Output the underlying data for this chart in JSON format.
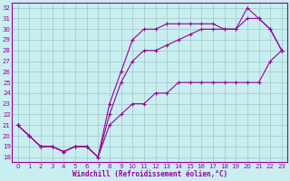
{
  "xlabel": "Windchill (Refroidissement éolien,°C)",
  "ylabel": "",
  "xlim": [
    -0.5,
    23.5
  ],
  "ylim": [
    17.5,
    32.5
  ],
  "xticks": [
    0,
    1,
    2,
    3,
    4,
    5,
    6,
    7,
    8,
    9,
    10,
    11,
    12,
    13,
    14,
    15,
    16,
    17,
    18,
    19,
    20,
    21,
    22,
    23
  ],
  "yticks": [
    18,
    19,
    20,
    21,
    22,
    23,
    24,
    25,
    26,
    27,
    28,
    29,
    30,
    31,
    32
  ],
  "background_color": "#c8eef0",
  "line_color": "#990099",
  "grid_color": "#aacccc",
  "line1_x": [
    0,
    1,
    2,
    3,
    4,
    5,
    6,
    7,
    8,
    9,
    10,
    11,
    12,
    13,
    14,
    15,
    16,
    17,
    18,
    19,
    20,
    21,
    22,
    23
  ],
  "line1_y": [
    21,
    20,
    19,
    19,
    18.5,
    19,
    19,
    18,
    21,
    22,
    23,
    23,
    24,
    24,
    25,
    25,
    25,
    25,
    25,
    25,
    25,
    25,
    27,
    28
  ],
  "line2_x": [
    0,
    1,
    2,
    3,
    4,
    5,
    6,
    7,
    8,
    9,
    10,
    11,
    12,
    13,
    14,
    15,
    16,
    17,
    18,
    19,
    20,
    21,
    22,
    23
  ],
  "line2_y": [
    21,
    20,
    19,
    19,
    18.5,
    19,
    19,
    18,
    22,
    25,
    27,
    28,
    28,
    28.5,
    29,
    29.5,
    30,
    30,
    30,
    30,
    31,
    31,
    30,
    28
  ],
  "line3_x": [
    0,
    1,
    2,
    3,
    4,
    5,
    6,
    7,
    8,
    9,
    10,
    11,
    12,
    13,
    14,
    15,
    16,
    17,
    18,
    19,
    20,
    21,
    22,
    23
  ],
  "line3_y": [
    21,
    20,
    19,
    19,
    18.5,
    19,
    19,
    18,
    23,
    26,
    29,
    30,
    30,
    30.5,
    30.5,
    30.5,
    30.5,
    30.5,
    30,
    30,
    32,
    31,
    30,
    28
  ]
}
